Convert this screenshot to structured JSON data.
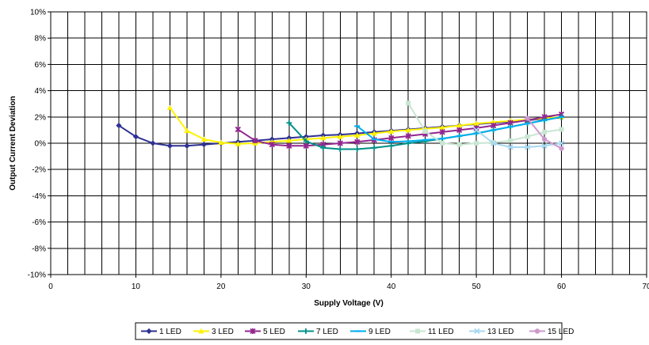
{
  "chart_data": {
    "type": "line",
    "xlabel": "Supply Voltage (V)",
    "ylabel": "Output Current Deviation",
    "xlim": [
      0,
      70
    ],
    "ylim": [
      -10,
      10
    ],
    "x_ticks": [
      0,
      10,
      20,
      30,
      40,
      50,
      60,
      70
    ],
    "y_ticks": [
      -10,
      -8,
      -6,
      -4,
      -2,
      0,
      2,
      4,
      6,
      8,
      10
    ],
    "x_tick_labels": [
      "0",
      "10",
      "20",
      "30",
      "40",
      "50",
      "60",
      "70"
    ],
    "y_tick_labels": [
      "-10%",
      "-8%",
      "-6%",
      "-4%",
      "-2%",
      "0%",
      "2%",
      "4%",
      "6%",
      "8%",
      "10%"
    ],
    "grid": true,
    "legend_position": "bottom",
    "series": [
      {
        "name": "1 LED",
        "color": "#2E3192",
        "marker": "diamond",
        "x": [
          8,
          10,
          12,
          14,
          16,
          18,
          20,
          22,
          24,
          26,
          28,
          30,
          32,
          34,
          36,
          38,
          40,
          42,
          44,
          46,
          48,
          50,
          52,
          54,
          56,
          58,
          60
        ],
        "y": [
          1.35,
          0.5,
          0.0,
          -0.2,
          -0.2,
          -0.1,
          0.0,
          0.1,
          0.2,
          0.3,
          0.4,
          0.5,
          0.6,
          0.65,
          0.75,
          0.85,
          0.95,
          1.05,
          1.15,
          1.25,
          1.35,
          1.45,
          1.55,
          1.65,
          1.75,
          1.85,
          1.95
        ]
      },
      {
        "name": "3 LED",
        "color": "#FFF200",
        "marker": "triangle",
        "x": [
          14,
          16,
          18,
          20,
          22,
          24,
          26,
          28,
          30,
          32,
          34,
          36,
          38,
          40,
          42,
          44,
          46,
          48,
          50,
          52,
          54,
          56,
          58,
          60
        ],
        "y": [
          2.7,
          0.95,
          0.3,
          0.05,
          -0.05,
          0.0,
          0.1,
          0.2,
          0.3,
          0.4,
          0.5,
          0.6,
          0.75,
          0.9,
          1.0,
          1.1,
          1.2,
          1.35,
          1.5,
          1.6,
          1.7,
          1.8,
          1.9,
          2.0
        ]
      },
      {
        "name": "5 LED",
        "color": "#92278F",
        "marker": "star",
        "x": [
          22,
          24,
          26,
          28,
          30,
          32,
          34,
          36,
          38,
          40,
          42,
          44,
          46,
          48,
          50,
          52,
          54,
          56,
          58,
          60
        ],
        "y": [
          1.05,
          0.2,
          -0.1,
          -0.2,
          -0.2,
          -0.1,
          0.0,
          0.1,
          0.25,
          0.4,
          0.55,
          0.7,
          0.85,
          1.0,
          1.15,
          1.35,
          1.55,
          1.75,
          2.0,
          2.2
        ]
      },
      {
        "name": "7 LED",
        "color": "#009087",
        "marker": "plus",
        "x": [
          28,
          30,
          32,
          34,
          36,
          38,
          40,
          42,
          44,
          46,
          48,
          50,
          52,
          54,
          56,
          58,
          60
        ],
        "y": [
          1.55,
          0.15,
          -0.35,
          -0.45,
          -0.45,
          -0.35,
          -0.2,
          0.0,
          0.15,
          0.35,
          0.55,
          0.75,
          1.0,
          1.25,
          1.5,
          1.75,
          2.0
        ]
      },
      {
        "name": "9 LED",
        "color": "#00AEEF",
        "marker": "dash",
        "x": [
          36,
          38,
          40,
          42,
          44,
          46,
          48,
          50,
          52,
          54,
          56,
          58,
          60
        ],
        "y": [
          1.3,
          0.3,
          0.1,
          0.15,
          0.25,
          0.35,
          0.55,
          0.75,
          1.0,
          1.25,
          1.5,
          1.75,
          2.0
        ]
      },
      {
        "name": "11 LED",
        "color": "#C8E6D2",
        "marker": "square",
        "x": [
          42,
          44,
          46,
          48,
          50,
          52,
          54,
          56,
          58,
          60
        ],
        "y": [
          3.05,
          0.9,
          0.0,
          -0.1,
          0.0,
          0.05,
          0.2,
          0.5,
          0.85,
          1.05
        ]
      },
      {
        "name": "13 LED",
        "color": "#A8D8F0",
        "marker": "x",
        "x": [
          50,
          52,
          54,
          56,
          58,
          60
        ],
        "y": [
          1.0,
          0.0,
          -0.3,
          -0.3,
          -0.2,
          0.0
        ]
      },
      {
        "name": "15 LED",
        "color": "#CC99CC",
        "marker": "circle",
        "x": [
          56,
          58,
          60
        ],
        "y": [
          1.9,
          0.3,
          -0.4
        ]
      }
    ]
  }
}
